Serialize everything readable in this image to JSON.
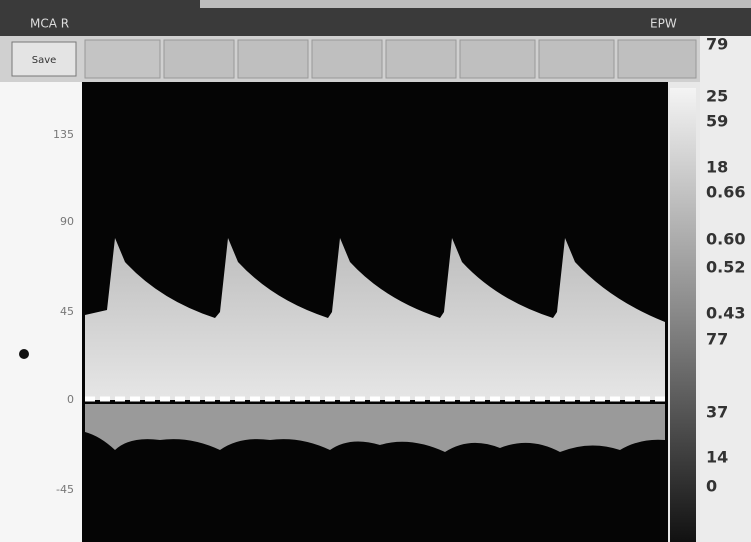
{
  "header": {
    "title": "MCA R",
    "mode": "EPW"
  },
  "toolbar": {
    "save": "Save"
  },
  "scale": {
    "labels": [
      "135",
      "90",
      "45",
      "0",
      "-45"
    ]
  },
  "readings": [
    "79",
    "25",
    "59",
    "18",
    "0.66",
    "0.60",
    "0.52",
    "0.43",
    "77",
    "37",
    "14",
    "0"
  ]
}
